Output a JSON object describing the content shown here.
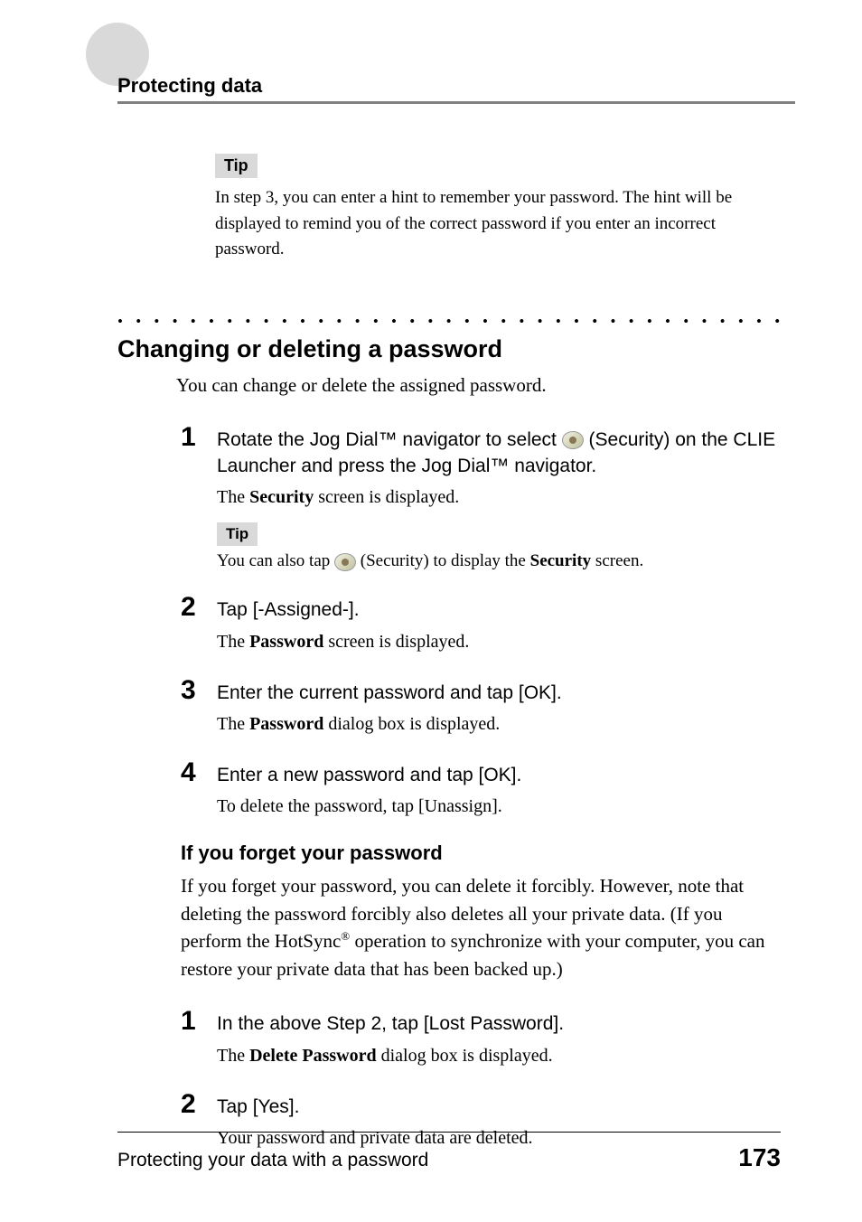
{
  "header": {
    "title": "Protecting data"
  },
  "intro_tip": {
    "label": "Tip",
    "text": "In step 3, you can enter a hint to remember your password. The hint will be displayed to remind you of the correct password if you enter an incorrect password."
  },
  "section": {
    "title": "Changing or deleting a password",
    "intro": "You can change or delete the assigned password."
  },
  "steps": [
    {
      "num": "1",
      "instr_pre": "Rotate the Jog Dial™ navigator to select ",
      "instr_post": " (Security) on the CLIE Launcher and press the Jog Dial™ navigator.",
      "detail_pre": "The ",
      "detail_bold": "Security",
      "detail_post": " screen is displayed.",
      "tip_label": "Tip",
      "tip_pre": "You can also tap ",
      "tip_mid": " (Security) to display the ",
      "tip_bold": "Security",
      "tip_post": " screen."
    },
    {
      "num": "2",
      "instr": "Tap [-Assigned-].",
      "detail_pre": "The ",
      "detail_bold": "Password",
      "detail_post": " screen is displayed."
    },
    {
      "num": "3",
      "instr": "Enter the current password and tap [OK].",
      "detail_pre": "The ",
      "detail_bold": "Password",
      "detail_post": " dialog box is displayed."
    },
    {
      "num": "4",
      "instr": "Enter a new password and tap [OK].",
      "detail": "To delete the password, tap [Unassign]."
    }
  ],
  "forgot": {
    "title": "If you forget your password",
    "text_pre": "If you forget your password, you can delete it forcibly. However, note that deleting the password forcibly also deletes all your private data. (If you perform the HotSync",
    "sup": "®",
    "text_post": " operation to synchronize with your computer, you can restore your private data that has been backed up.)"
  },
  "forgot_steps": [
    {
      "num": "1",
      "instr": "In the above Step 2, tap [Lost Password].",
      "detail_pre": "The ",
      "detail_bold": "Delete Password",
      "detail_post": " dialog box is displayed."
    },
    {
      "num": "2",
      "instr": "Tap [Yes].",
      "detail": "Your password and private data are deleted."
    }
  ],
  "footer": {
    "text": "Protecting your data with a password",
    "page": "173"
  },
  "dots": "• • • • • • • • • • • • • • • • • • • • • • • • • • • • • • • • • • • • • • • • • • • • • • • • • • • • • • • • • • • • • •"
}
